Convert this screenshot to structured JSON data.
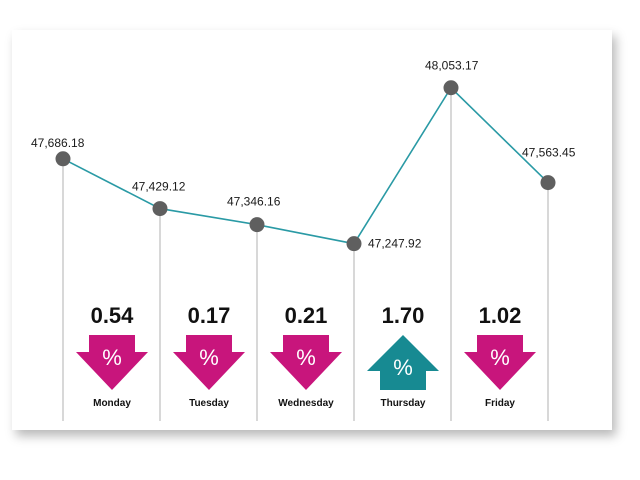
{
  "chart_data": {
    "type": "line",
    "categories": [
      "Monday",
      "Tuesday",
      "Wednesday",
      "Thursday",
      "Friday",
      ""
    ],
    "values": [
      47686.18,
      47429.12,
      47346.16,
      47247.92,
      48053.17,
      47563.45
    ],
    "value_labels": [
      "47,686.18",
      "47,429.12",
      "47,346.16",
      "47,247.92",
      "48,053.17",
      "47,563.45"
    ],
    "ylim": [
      47050,
      48150
    ],
    "daily_change": [
      {
        "day": "Monday",
        "percent_label": "0.54",
        "direction": "down",
        "symbol": "%"
      },
      {
        "day": "Tuesday",
        "percent_label": "0.17",
        "direction": "down",
        "symbol": "%"
      },
      {
        "day": "Wednesday",
        "percent_label": "0.21",
        "direction": "down",
        "symbol": "%"
      },
      {
        "day": "Thursday",
        "percent_label": "1.70",
        "direction": "up",
        "symbol": "%"
      },
      {
        "day": "Friday",
        "percent_label": "1.02",
        "direction": "down",
        "symbol": "%"
      }
    ],
    "grid": false
  },
  "colors": {
    "line": "#2a9aa5",
    "marker": "#5f5f5f",
    "guide": "#bdbdbd",
    "down_arrow": "#c8157c",
    "up_arrow": "#178a92"
  }
}
